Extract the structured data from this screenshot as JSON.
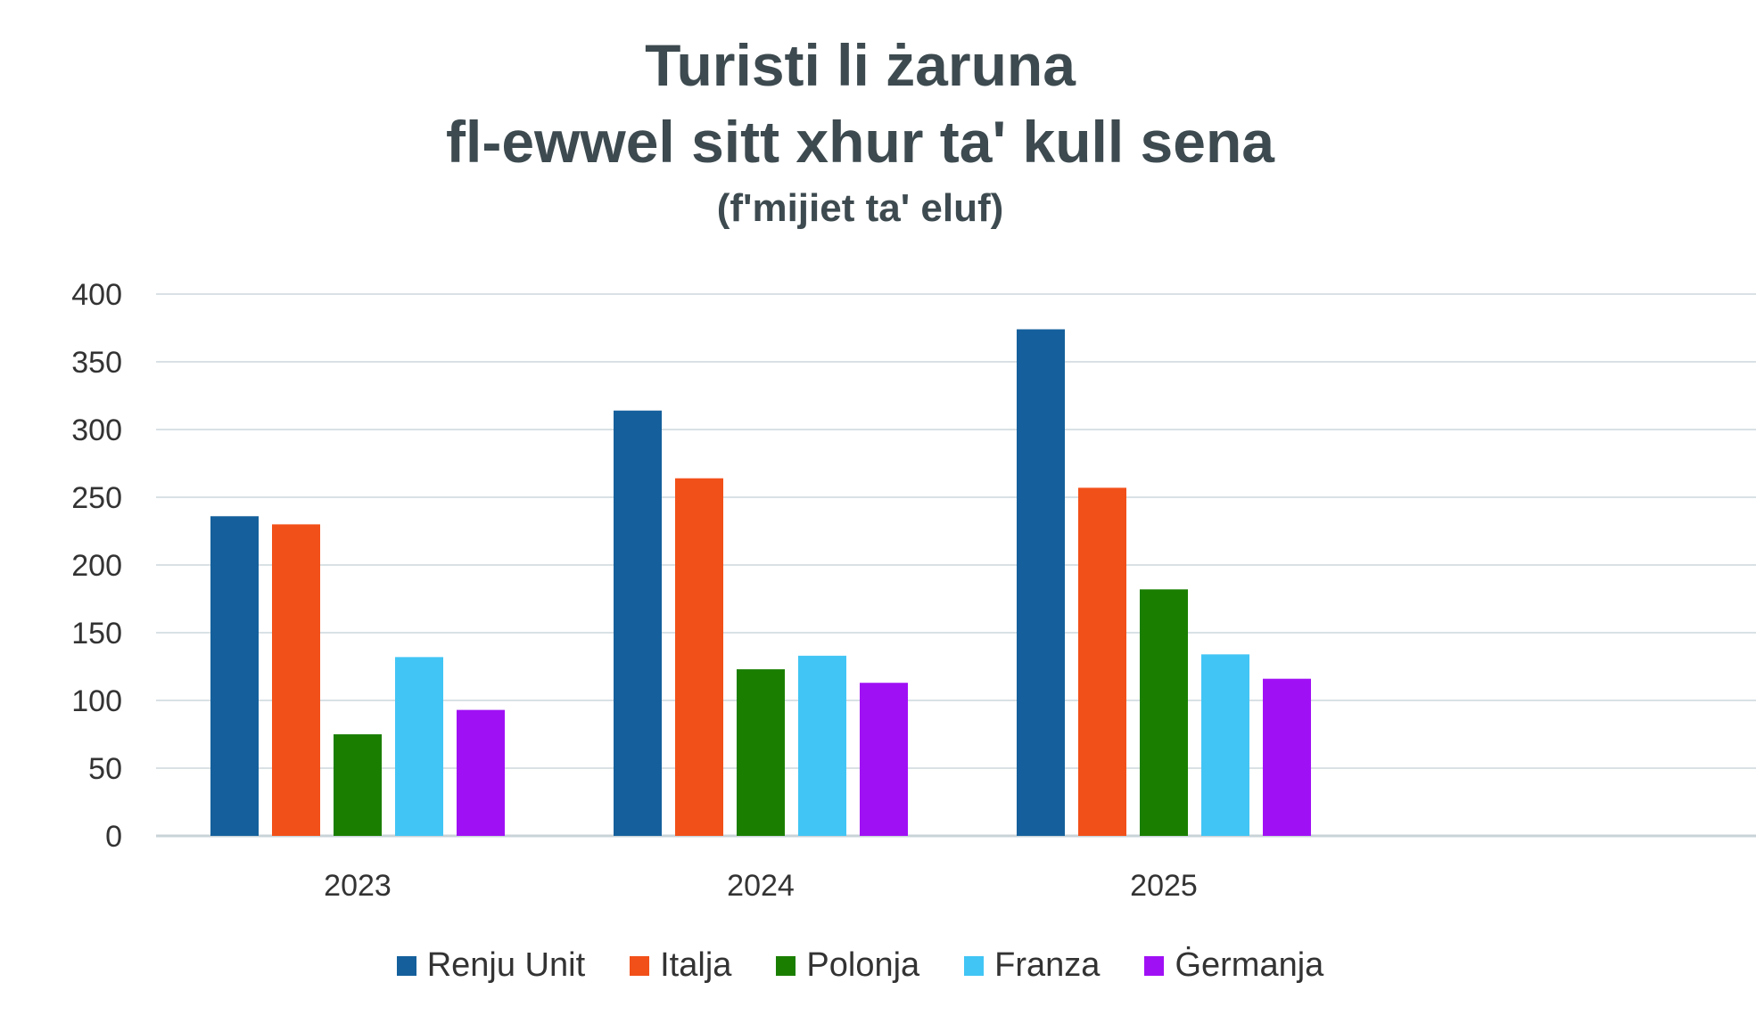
{
  "chart_data": {
    "type": "bar",
    "title": "Turisti li żaruna",
    "title_line2": "fl-ewwel sitt xhur ta' kull sena",
    "subtitle": "(f'mijiet ta' eluf)",
    "categories": [
      "2023",
      "2024",
      "2025"
    ],
    "series": [
      {
        "name": "Renju Unit",
        "color": "#15609c",
        "values": [
          236,
          314,
          374
        ]
      },
      {
        "name": "Italja",
        "color": "#f25019",
        "values": [
          230,
          264,
          257
        ]
      },
      {
        "name": "Polonja",
        "color": "#1a7f00",
        "values": [
          75,
          123,
          182
        ]
      },
      {
        "name": "Franza",
        "color": "#41c5f5",
        "values": [
          132,
          133,
          134
        ]
      },
      {
        "name": "Ġermanja",
        "color": "#a010f5",
        "values": [
          93,
          113,
          116
        ]
      }
    ],
    "yticks": [
      "0",
      "50",
      "100",
      "150",
      "200",
      "250",
      "300",
      "350",
      "400"
    ],
    "ylim": [
      0,
      400
    ],
    "grid": true,
    "legend_position": "bottom"
  }
}
